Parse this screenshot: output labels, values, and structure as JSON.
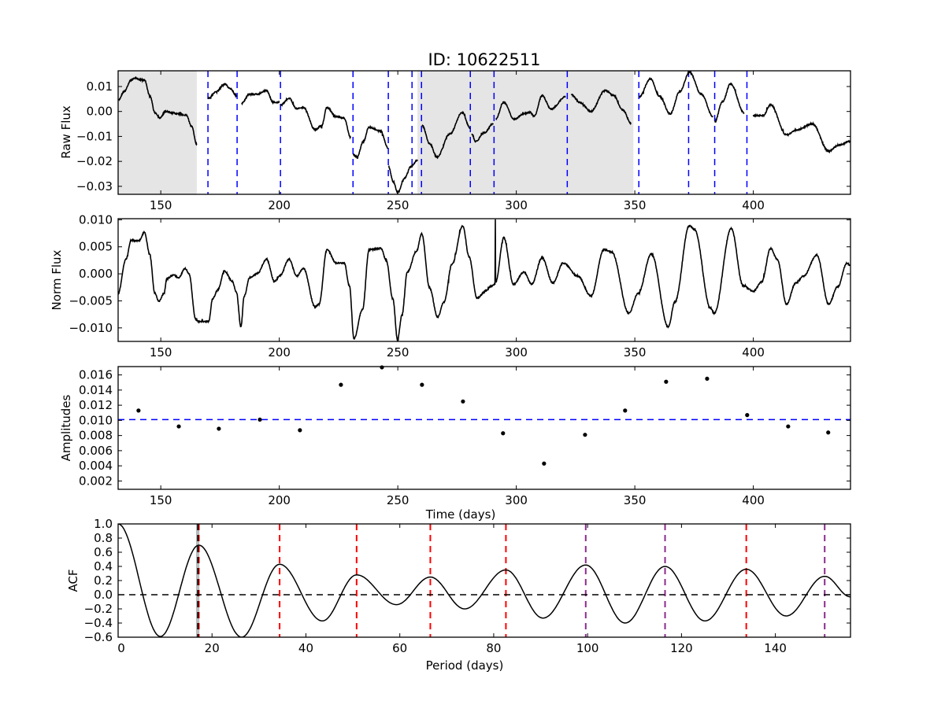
{
  "chart_data": [
    {
      "type": "line",
      "panel": "raw",
      "title": "ID: 10622511",
      "ylabel": "Raw Flux",
      "xlabel": "",
      "xlim": [
        132,
        441
      ],
      "ylim": [
        -0.0332,
        0.0163
      ],
      "xticks": [
        150,
        200,
        250,
        300,
        350,
        400
      ],
      "xtick_labels": [
        "150",
        "200",
        "250",
        "300",
        "350",
        "400"
      ],
      "yticks": [
        -0.03,
        -0.02,
        -0.01,
        0.0,
        0.01
      ],
      "ytick_labels": [
        "−0.03",
        "−0.02",
        "−0.01",
        "0.00",
        "0.01"
      ],
      "shaded_spans": [
        [
          132,
          165.2
        ],
        [
          258.3,
          349.4
        ]
      ],
      "shade_color": "#e5e5e5",
      "vlines": [
        169.9,
        182.2,
        200.5,
        231.1,
        246.0,
        256.0,
        260.0,
        280.6,
        290.6,
        321.5,
        351.7,
        372.7,
        383.7,
        397.3
      ],
      "vline_color": "#0000ff",
      "segments": [
        [
          [
            132.2,
            0.0047
          ],
          [
            134.5,
            0.008
          ],
          [
            137.5,
            0.0126
          ],
          [
            139.2,
            0.0134
          ],
          [
            141,
            0.0128
          ],
          [
            143.1,
            0.0126
          ],
          [
            145.5,
            0.006
          ],
          [
            147.5,
            -0.0005
          ],
          [
            149.7,
            -0.0026
          ],
          [
            151.9,
            0.0
          ],
          [
            154.5,
            -0.0005
          ],
          [
            157.5,
            -0.001
          ],
          [
            160.8,
            -0.0015
          ],
          [
            163,
            -0.006
          ],
          [
            165.2,
            -0.0131
          ]
        ],
        [
          [
            170.0,
            0.0053
          ],
          [
            173.5,
            0.008
          ],
          [
            176.9,
            0.011
          ],
          [
            179.5,
            0.009
          ],
          [
            181.9,
            0.0063
          ]
        ],
        [
          [
            184.1,
            0.0032
          ],
          [
            187.4,
            0.0069
          ],
          [
            190.7,
            0.0069
          ],
          [
            194.6,
            0.0084
          ],
          [
            197.4,
            0.0037
          ],
          [
            200.1,
            0.0037
          ]
        ],
        [
          [
            200.7,
            0.0027
          ],
          [
            204.1,
            0.0053
          ],
          [
            207.4,
            0.0011
          ],
          [
            210.2,
            0.0016
          ],
          [
            215.1,
            -0.0073
          ],
          [
            217.9,
            -0.0057
          ],
          [
            220.1,
            0.0016
          ],
          [
            224.0,
            -0.0021
          ],
          [
            227.3,
            -0.0026
          ],
          [
            230.1,
            -0.0105
          ]
        ],
        [
          [
            231.2,
            -0.0173
          ],
          [
            232.8,
            -0.0183
          ],
          [
            235.5,
            -0.012
          ],
          [
            237.8,
            -0.0063
          ],
          [
            242.8,
            -0.0079
          ],
          [
            245.9,
            -0.0147
          ]
        ],
        [
          [
            246.1,
            -0.022
          ],
          [
            248,
            -0.028
          ],
          [
            250.0,
            -0.0325
          ],
          [
            252.8,
            -0.0268
          ],
          [
            255.6,
            -0.022
          ],
          [
            258.4,
            -0.0194
          ]
        ],
        [
          [
            260.3,
            -0.0057
          ],
          [
            263.5,
            -0.013
          ],
          [
            266.5,
            -0.0183
          ],
          [
            272,
            -0.009
          ],
          [
            277.1,
            -0.0005
          ],
          [
            280.6,
            -0.0067
          ]
        ],
        [
          [
            281.2,
            -0.0089
          ],
          [
            282.8,
            -0.012
          ],
          [
            286.5,
            -0.0085
          ],
          [
            290.3,
            -0.0048
          ]
        ],
        [
          [
            291.3,
            -0.0031
          ],
          [
            294.7,
            0.0037
          ],
          [
            299.1,
            -0.0031
          ],
          [
            303,
            -0.001
          ],
          [
            305.9,
            -0.0004
          ],
          [
            307.5,
            -0.002
          ],
          [
            310.9,
            0.0063
          ],
          [
            314.7,
            0.001
          ],
          [
            320.8,
            0.0059
          ]
        ],
        [
          [
            323.2,
            0.0067
          ],
          [
            327,
            0.0035
          ],
          [
            331.4,
            0.0
          ],
          [
            337.5,
            0.0084
          ],
          [
            341,
            0.0065
          ],
          [
            345,
            0.0005
          ],
          [
            348.4,
            -0.0047
          ]
        ],
        [
          [
            351.8,
            0.0058
          ],
          [
            356.6,
            0.0131
          ],
          [
            360.5,
            0.006
          ],
          [
            364.9,
            -0.001
          ],
          [
            369,
            0.008
          ],
          [
            373.1,
            0.0158
          ],
          [
            378,
            0.007
          ],
          [
            383.0,
            -0.002
          ]
        ],
        [
          [
            383.7,
            -0.0042
          ],
          [
            387,
            0.004
          ],
          [
            390.4,
            0.0111
          ],
          [
            396.1,
            -0.0005
          ]
        ],
        [
          [
            399.8,
            -0.0016
          ],
          [
            404.2,
            -0.0016
          ],
          [
            407.3,
            0.0027
          ],
          [
            413.9,
            -0.0094
          ],
          [
            418.6,
            -0.0073
          ],
          [
            424.9,
            -0.005
          ],
          [
            431.8,
            -0.0159
          ],
          [
            436,
            -0.0135
          ],
          [
            441,
            -0.012
          ]
        ]
      ]
    },
    {
      "type": "line",
      "panel": "norm",
      "ylabel": "Norm Flux",
      "xlim": [
        132,
        441
      ],
      "ylim": [
        -0.0125,
        0.0102
      ],
      "xticks": [
        150,
        200,
        250,
        300,
        350,
        400
      ],
      "xtick_labels": [
        "150",
        "200",
        "250",
        "300",
        "350",
        "400"
      ],
      "yticks": [
        -0.01,
        -0.005,
        0.0,
        0.005,
        0.01
      ],
      "ytick_labels": [
        "−0.010",
        "−0.005",
        "0.000",
        "0.005",
        "0.010"
      ],
      "points": [
        [
          132,
          -0.0036
        ],
        [
          135.3,
          0.0027
        ],
        [
          137.5,
          0.0062
        ],
        [
          140.9,
          0.0061
        ],
        [
          143.1,
          0.0077
        ],
        [
          145.3,
          0.0037
        ],
        [
          147.5,
          -0.0036
        ],
        [
          149.2,
          -0.0051
        ],
        [
          151.4,
          -0.0036
        ],
        [
          152.5,
          -0.0009
        ],
        [
          155.3,
          -0.0002
        ],
        [
          157.5,
          -0.0007
        ],
        [
          160.3,
          0.001
        ],
        [
          161.9,
          0.0
        ],
        [
          164.7,
          -0.0083
        ],
        [
          165.8,
          -0.0088
        ],
        [
          170.2,
          -0.0088
        ],
        [
          171.9,
          -0.0046
        ],
        [
          174.1,
          -0.0029
        ],
        [
          176.9,
          0.0005
        ],
        [
          180.2,
          -0.0014
        ],
        [
          181.9,
          -0.0034
        ],
        [
          183.8,
          -0.0098
        ],
        [
          185.2,
          -0.0041
        ],
        [
          187.5,
          -0.0007
        ],
        [
          190.8,
          0.0001
        ],
        [
          194.6,
          0.0027
        ],
        [
          198.0,
          -0.0014
        ],
        [
          200.2,
          -0.0004
        ],
        [
          204.1,
          0.0027
        ],
        [
          207.4,
          -0.0004
        ],
        [
          210.2,
          0.001
        ],
        [
          215.1,
          -0.0061
        ],
        [
          216.8,
          -0.0056
        ],
        [
          220.1,
          0.0045
        ],
        [
          224.0,
          0.002
        ],
        [
          227.4,
          0.002
        ],
        [
          229.6,
          -0.0022
        ],
        [
          231.5,
          -0.012
        ],
        [
          235.1,
          -0.0066
        ],
        [
          237.9,
          0.0045
        ],
        [
          242.9,
          0.0047
        ],
        [
          245.1,
          0.0025
        ],
        [
          247.9,
          -0.0046
        ],
        [
          249.9,
          -0.0122
        ],
        [
          251.8,
          -0.0075
        ],
        [
          254.0,
          0.0003
        ],
        [
          257.9,
          0.0042
        ],
        [
          260.1,
          0.0074
        ],
        [
          263.4,
          -0.0026
        ],
        [
          266.8,
          -0.008
        ],
        [
          269.5,
          -0.0052
        ],
        [
          272.9,
          0.0018
        ],
        [
          277.4,
          0.0089
        ],
        [
          280.1,
          0.0031
        ],
        [
          283.4,
          -0.0045
        ],
        [
          287.3,
          -0.0031
        ],
        [
          288.8,
          -0.0024
        ],
        [
          291.0,
          -0.0019
        ],
        [
          291.15,
          0.0102
        ],
        [
          291.3,
          -0.0015
        ],
        [
          294.7,
          0.0067
        ],
        [
          298.8,
          -0.0019
        ],
        [
          303.2,
          0.0003
        ],
        [
          306.5,
          -0.0019
        ],
        [
          310.9,
          0.003
        ],
        [
          315.4,
          -0.0017
        ],
        [
          319.8,
          0.002
        ],
        [
          325.9,
          -0.0004
        ],
        [
          331.5,
          -0.0041
        ],
        [
          337.0,
          0.0045
        ],
        [
          340.3,
          0.004
        ],
        [
          347.5,
          -0.0073
        ],
        [
          351.4,
          -0.0036
        ],
        [
          357.0,
          0.0037
        ],
        [
          364.1,
          -0.0098
        ],
        [
          366.9,
          -0.0052
        ],
        [
          373.0,
          0.0089
        ],
        [
          375.2,
          0.0082
        ],
        [
          381.9,
          -0.0063
        ],
        [
          383.5,
          -0.0073
        ],
        [
          390.7,
          0.0084
        ],
        [
          395.7,
          -0.0022
        ],
        [
          400.1,
          -0.0032
        ],
        [
          403.5,
          -0.0015
        ],
        [
          407.3,
          0.0047
        ],
        [
          410.1,
          0.0027
        ],
        [
          414.0,
          -0.0056
        ],
        [
          417.9,
          -0.0017
        ],
        [
          421.2,
          -0.0004
        ],
        [
          426.8,
          0.0035
        ],
        [
          431.8,
          -0.0056
        ],
        [
          435.6,
          -0.0024
        ],
        [
          439.5,
          0.002
        ],
        [
          441,
          0.0015
        ]
      ]
    },
    {
      "type": "scatter",
      "panel": "amplitudes",
      "ylabel": "Amplitudes",
      "xlabel": "Time (days)",
      "xlim": [
        132,
        441
      ],
      "ylim": [
        0.0009,
        0.0171
      ],
      "xticks": [
        150,
        200,
        250,
        300,
        350,
        400
      ],
      "xtick_labels": [
        "150",
        "200",
        "250",
        "300",
        "350",
        "400"
      ],
      "yticks": [
        0.002,
        0.004,
        0.006,
        0.008,
        0.01,
        0.012,
        0.014,
        0.016
      ],
      "ytick_labels": [
        "0.002",
        "0.004",
        "0.006",
        "0.008",
        "0.010",
        "0.012",
        "0.014",
        "0.016"
      ],
      "x": [
        140.6,
        157.6,
        174.5,
        191.8,
        208.7,
        226.0,
        243.3,
        260.2,
        277.5,
        294.4,
        311.7,
        329.0,
        345.9,
        363.2,
        380.5,
        397.4,
        414.7,
        431.6
      ],
      "y": [
        0.0113,
        0.0092,
        0.0089,
        0.0101,
        0.0087,
        0.0147,
        0.017,
        0.0147,
        0.0125,
        0.0083,
        0.0043,
        0.0081,
        0.0113,
        0.0151,
        0.0155,
        0.0107,
        0.0092,
        0.0084
      ],
      "hline": 0.0101,
      "hline_color": "#0000ff"
    },
    {
      "type": "line",
      "panel": "acf",
      "ylabel": "ACF",
      "xlabel": "Period (days)",
      "xlim": [
        0,
        156
      ],
      "ylim": [
        -0.6,
        1.0
      ],
      "xticks": [
        0,
        20,
        40,
        60,
        80,
        100,
        120,
        140
      ],
      "xtick_labels": [
        "0",
        "20",
        "40",
        "60",
        "80",
        "100",
        "120",
        "140"
      ],
      "yticks": [
        -0.6,
        -0.4,
        -0.2,
        0.0,
        0.2,
        0.4,
        0.6,
        0.8,
        1.0
      ],
      "ytick_labels": [
        "−0.6",
        "−0.4",
        "−0.2",
        "0.0",
        "0.2",
        "0.4",
        "0.6",
        "0.8",
        "1.0"
      ],
      "extrema": [
        [
          0,
          1.0
        ],
        [
          9.0,
          -0.59
        ],
        [
          17.2,
          0.7
        ],
        [
          26.3,
          -0.6
        ],
        [
          34.4,
          0.43
        ],
        [
          43.5,
          -0.37
        ],
        [
          50.8,
          0.28
        ],
        [
          59.3,
          -0.14
        ],
        [
          66.5,
          0.25
        ],
        [
          73.8,
          -0.2
        ],
        [
          82.6,
          0.35
        ],
        [
          90.5,
          -0.33
        ],
        [
          99.6,
          0.42
        ],
        [
          108.0,
          -0.4
        ],
        [
          116.5,
          0.4
        ],
        [
          125.0,
          -0.37
        ],
        [
          133.8,
          0.36
        ],
        [
          142.3,
          -0.3
        ],
        [
          150.5,
          0.26
        ],
        [
          156,
          -0.03
        ]
      ],
      "zero_line": 0.0,
      "period_band": [
        16.6,
        17.3
      ],
      "period_line": 17.0,
      "peak_lines": [
        {
          "x": 17.2,
          "color": "#ff0000"
        },
        {
          "x": 34.4,
          "color": "#ff0000"
        },
        {
          "x": 50.8,
          "color": "#ff0000"
        },
        {
          "x": 66.5,
          "color": "#ff0000"
        },
        {
          "x": 82.6,
          "color": "#ff0000"
        },
        {
          "x": 99.6,
          "color": "#8b2a8b"
        },
        {
          "x": 116.5,
          "color": "#8b2a8b"
        },
        {
          "x": 133.8,
          "color": "#ff0000"
        },
        {
          "x": 150.5,
          "color": "#8b2a8b"
        }
      ]
    }
  ]
}
